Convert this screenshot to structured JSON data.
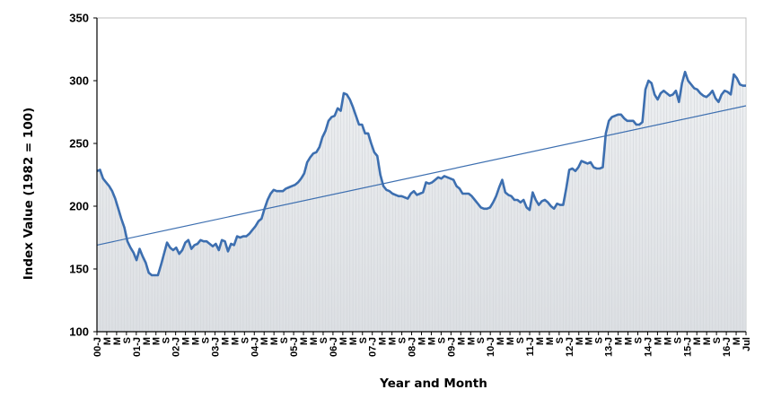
{
  "chart_data": {
    "type": "area",
    "title": "",
    "xlabel": "Year and Month",
    "ylabel": "Index Value (1982 = 100)",
    "ylim": [
      100,
      350
    ],
    "yticks": [
      "100",
      "150",
      "200",
      "250",
      "300",
      "350"
    ],
    "grid": false,
    "legend": "none",
    "x_tick_labels": [
      "00-J",
      "M",
      "M",
      "S",
      "01-J",
      "M",
      "M",
      "S",
      "02-J",
      "M",
      "M",
      "S",
      "03-J",
      "M",
      "M",
      "S",
      "04-J",
      "M",
      "M",
      "S",
      "05-J",
      "M",
      "M",
      "S",
      "06-J",
      "M",
      "M",
      "S",
      "07-J",
      "M",
      "M",
      "S",
      "08-J",
      "M",
      "M",
      "S",
      "09-J",
      "M",
      "M",
      "S",
      "10-J",
      "M",
      "M",
      "S",
      "11-J",
      "M",
      "M",
      "S",
      "12-J",
      "M",
      "M",
      "S",
      "13-J",
      "M",
      "M",
      "S",
      "14-J",
      "M",
      "M",
      "S",
      "15-J",
      "M",
      "M",
      "S",
      "16-J",
      "M",
      "Jul"
    ],
    "series": [
      {
        "name": "Index Value",
        "type": "line",
        "color": "#3d6fb0",
        "fill": "#dcdfe3",
        "x_start": "2000-01",
        "frequency": "monthly",
        "values": [
          228,
          229,
          222,
          219,
          216,
          212,
          206,
          198,
          190,
          183,
          172,
          167,
          163,
          157,
          166,
          160,
          155,
          147,
          145,
          145,
          145,
          153,
          162,
          171,
          167,
          165,
          167,
          162,
          165,
          171,
          173,
          166,
          169,
          170,
          173,
          172,
          172,
          170,
          168,
          170,
          165,
          173,
          172,
          164,
          170,
          169,
          176,
          175,
          176,
          176,
          178,
          181,
          184,
          188,
          190,
          198,
          205,
          210,
          213,
          212,
          212,
          212,
          214,
          215,
          216,
          217,
          219,
          222,
          226,
          235,
          239,
          242,
          243,
          247,
          255,
          260,
          268,
          271,
          272,
          278,
          276,
          290,
          289,
          285,
          279,
          272,
          265,
          265,
          258,
          258,
          250,
          243,
          240,
          225,
          216,
          213,
          212,
          210,
          209,
          208,
          208,
          207,
          206,
          210,
          212,
          209,
          210,
          211,
          219,
          218,
          219,
          221,
          223,
          222,
          224,
          223,
          222,
          221,
          216,
          214,
          210,
          210,
          210,
          208,
          205,
          202,
          199,
          198,
          198,
          199,
          203,
          208,
          215,
          221,
          211,
          209,
          208,
          205,
          205,
          203,
          205,
          199,
          197,
          211,
          205,
          201,
          204,
          205,
          203,
          200,
          198,
          202,
          201,
          201,
          214,
          229,
          230,
          228,
          231,
          236,
          235,
          234,
          235,
          231,
          230,
          230,
          231,
          258,
          268,
          271,
          272,
          273,
          273,
          270,
          268,
          268,
          268,
          265,
          265,
          267,
          293,
          300,
          298,
          289,
          285,
          290,
          292,
          290,
          288,
          289,
          292,
          283,
          298,
          307,
          300,
          297,
          294,
          293,
          290,
          288,
          287,
          289,
          292,
          286,
          283,
          289,
          292,
          291,
          289,
          305,
          302,
          297,
          296,
          296
        ]
      },
      {
        "name": "Trend",
        "type": "linear-trend",
        "color": "#3d6fb0",
        "start_value": 169,
        "end_value": 280
      }
    ]
  }
}
